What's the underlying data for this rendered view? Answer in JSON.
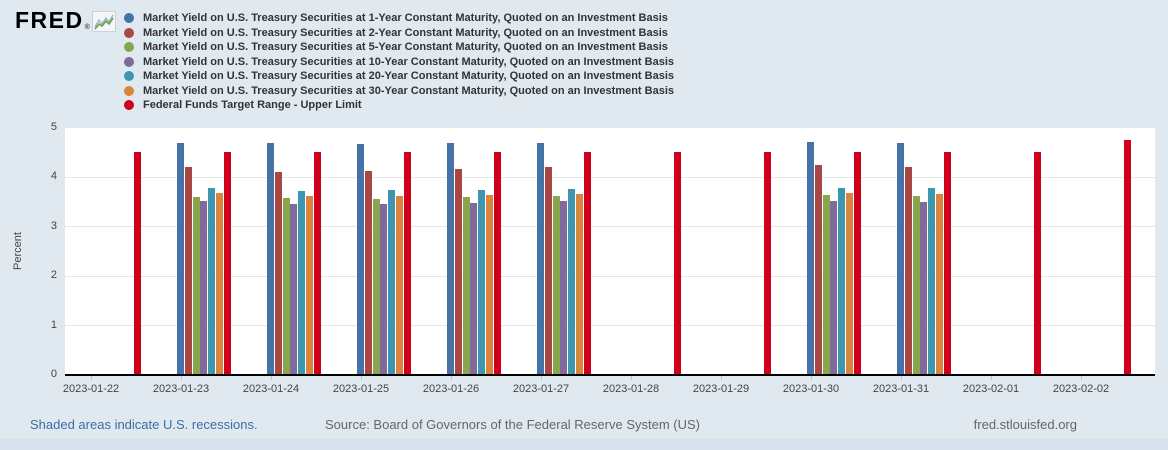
{
  "brand": {
    "logo_text": "FRED",
    "registered": "®"
  },
  "chart_data": {
    "type": "bar",
    "title": "",
    "xlabel": "",
    "ylabel": "Percent",
    "ylim": [
      0,
      5
    ],
    "yticks": [
      0,
      1,
      2,
      3,
      4,
      5
    ],
    "grid": true,
    "legend_position": "top",
    "categories": [
      "2023-01-22",
      "2023-01-23",
      "2023-01-24",
      "2023-01-25",
      "2023-01-26",
      "2023-01-27",
      "2023-01-28",
      "2023-01-29",
      "2023-01-30",
      "2023-01-31",
      "2023-02-01",
      "2023-02-02"
    ],
    "series": [
      {
        "name": "Market Yield on U.S. Treasury Securities at 1-Year Constant Maturity, Quoted on an Investment Basis",
        "color": "#4572a7",
        "values": [
          null,
          4.68,
          4.69,
          4.67,
          4.69,
          4.68,
          null,
          null,
          4.71,
          4.68,
          null,
          null
        ]
      },
      {
        "name": "Market Yield on U.S. Treasury Securities at 2-Year Constant Maturity, Quoted on an Investment Basis",
        "color": "#aa4643",
        "values": [
          null,
          4.21,
          4.11,
          4.12,
          4.17,
          4.2,
          null,
          null,
          4.25,
          4.21,
          null,
          null
        ]
      },
      {
        "name": "Market Yield on U.S. Treasury Securities at 5-Year Constant Maturity, Quoted on an Investment Basis",
        "color": "#89a54e",
        "values": [
          null,
          3.6,
          3.57,
          3.56,
          3.59,
          3.61,
          null,
          null,
          3.64,
          3.61,
          null,
          null
        ]
      },
      {
        "name": "Market Yield on U.S. Treasury Securities at 10-Year Constant Maturity, Quoted on an Investment Basis",
        "color": "#80699b",
        "values": [
          null,
          3.51,
          3.46,
          3.46,
          3.48,
          3.51,
          null,
          null,
          3.52,
          3.5,
          null,
          null
        ]
      },
      {
        "name": "Market Yield on U.S. Treasury Securities at 20-Year Constant Maturity, Quoted on an Investment Basis",
        "color": "#3d96ae",
        "values": [
          null,
          3.78,
          3.72,
          3.73,
          3.74,
          3.76,
          null,
          null,
          3.78,
          3.77,
          null,
          null
        ]
      },
      {
        "name": "Market Yield on U.S. Treasury Securities at 30-Year Constant Maturity, Quoted on an Investment Basis",
        "color": "#db843d",
        "values": [
          null,
          3.68,
          3.62,
          3.62,
          3.64,
          3.65,
          null,
          null,
          3.67,
          3.65,
          null,
          null
        ]
      },
      {
        "name": "Federal Funds Target Range - Upper Limit",
        "color": "#d0001c",
        "values": [
          4.5,
          4.5,
          4.5,
          4.5,
          4.5,
          4.5,
          4.5,
          4.5,
          4.5,
          4.5,
          4.5,
          4.75
        ]
      }
    ]
  },
  "footer": {
    "recessions_note": "Shaded areas indicate U.S. recessions.",
    "source": "Source: Board of Governors of the Federal Reserve System (US)",
    "site": "fred.stlouisfed.org"
  }
}
